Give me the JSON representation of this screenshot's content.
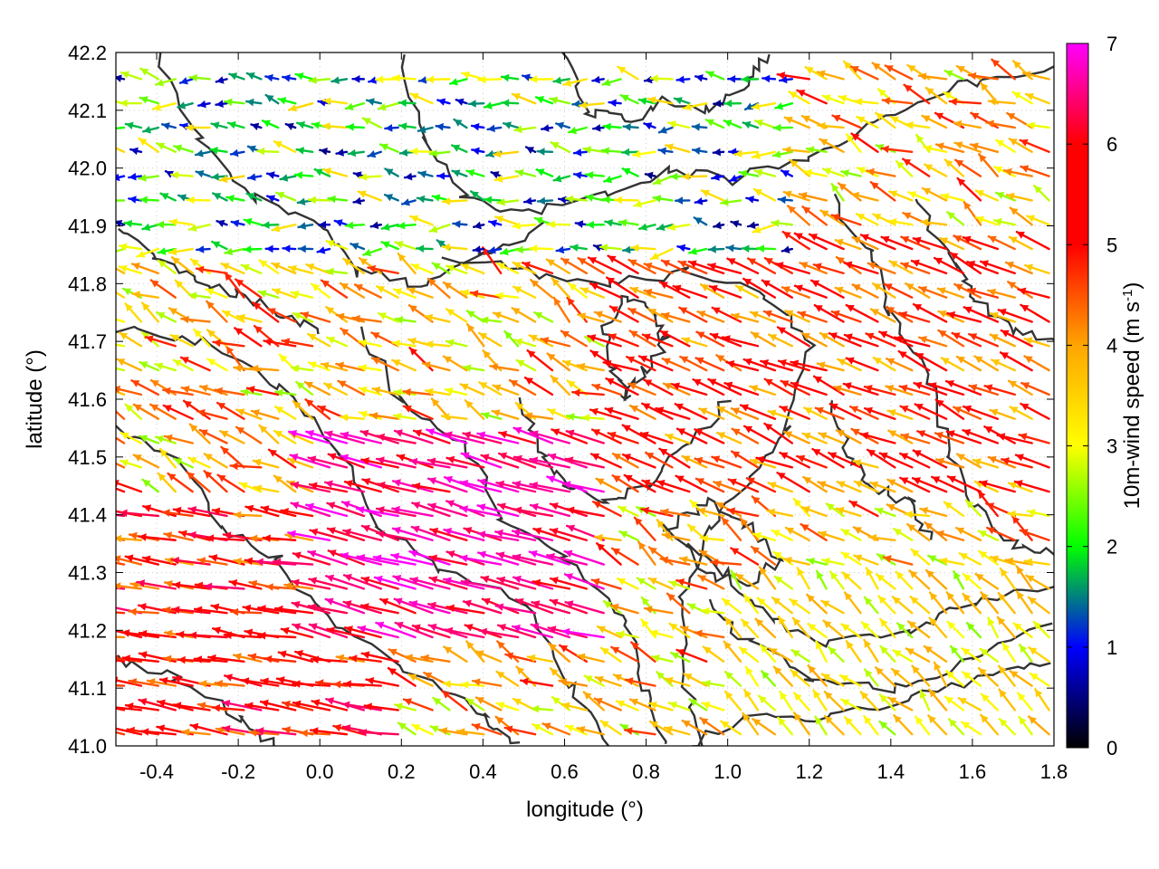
{
  "chart_data": {
    "type": "vector-field",
    "xlabel": "longitude (°)",
    "ylabel": "latitude (°)",
    "colorbar_label": "10m-wind speed (m s",
    "colorbar_label_sup": "-1",
    "colorbar_label_end": ")",
    "xlim": [
      -0.5,
      1.8
    ],
    "ylim": [
      41.0,
      42.2
    ],
    "xticks": [
      "-0.4",
      "-0.2",
      "0.0",
      "0.2",
      "0.4",
      "0.6",
      "0.8",
      "1.0",
      "1.2",
      "1.4",
      "1.6",
      "1.8"
    ],
    "xtick_values": [
      -0.4,
      -0.2,
      0.0,
      0.2,
      0.4,
      0.6,
      0.8,
      1.0,
      1.2,
      1.4,
      1.6,
      1.8
    ],
    "yticks": [
      "41.0",
      "41.1",
      "41.2",
      "41.3",
      "41.4",
      "41.5",
      "41.6",
      "41.7",
      "41.8",
      "41.9",
      "42.0",
      "42.1",
      "42.2"
    ],
    "ytick_values": [
      41.0,
      41.1,
      41.2,
      41.3,
      41.4,
      41.5,
      41.6,
      41.7,
      41.8,
      41.9,
      42.0,
      42.1,
      42.2
    ],
    "colorbar_range": [
      0,
      7
    ],
    "colorbar_ticks": [
      "0",
      "1",
      "2",
      "3",
      "4",
      "5",
      "6",
      "7"
    ],
    "colorbar_tick_values": [
      0,
      1,
      2,
      3,
      4,
      5,
      6,
      7
    ],
    "colormap": [
      "#000000",
      "#0000ff",
      "#00ff00",
      "#ffff00",
      "#ffa500",
      "#ff0000",
      "#ff00ff"
    ],
    "contour_color": "#333333",
    "grid": true,
    "wind_regions": [
      {
        "region": "north",
        "x": [
          -0.5,
          1.2
        ],
        "y": [
          41.85,
          42.2
        ],
        "u": -1.5,
        "v": 0.1,
        "speed_range": [
          0.5,
          3.5
        ]
      },
      {
        "region": "center-jet",
        "x": [
          0.0,
          0.7
        ],
        "y": [
          41.15,
          41.55
        ],
        "u": -5.5,
        "v": 1.5,
        "speed_range": [
          6.0,
          7.0
        ]
      },
      {
        "region": "southwest",
        "x": [
          -0.5,
          0.2
        ],
        "y": [
          41.0,
          41.4
        ],
        "u": -5.0,
        "v": 0.8,
        "speed_range": [
          4.0,
          6.5
        ]
      },
      {
        "region": "east",
        "x": [
          0.7,
          1.8
        ],
        "y": [
          41.4,
          41.9
        ],
        "u": -3.5,
        "v": 1.5,
        "speed_range": [
          3.5,
          6.0
        ]
      },
      {
        "region": "southeast",
        "x": [
          1.0,
          1.8
        ],
        "y": [
          41.0,
          41.3
        ],
        "u": -1.5,
        "v": 1.5,
        "speed_range": [
          2.5,
          4.0
        ]
      }
    ]
  }
}
